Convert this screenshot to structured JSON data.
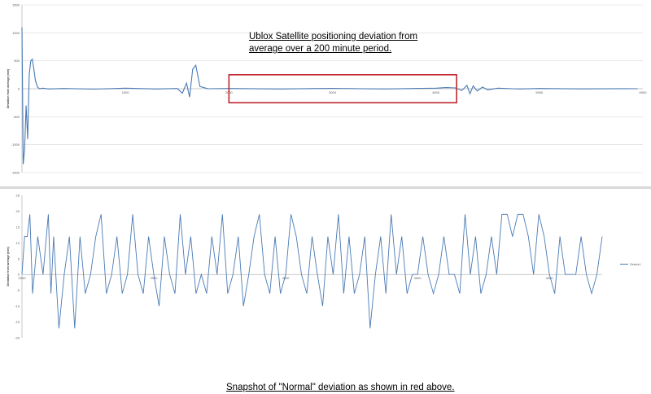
{
  "top_annotation": {
    "line1": "Ublox Satellite positioning deviation from",
    "line2": "average over a 200 minute period."
  },
  "bottom_annotation": "Snapshot of \"Normal\" deviation as shown in red above.",
  "colors": {
    "series": "#4a7ab5",
    "highlight_box": "#c0262d",
    "grid": "#d9d9d9",
    "axis": "#a6a6a6"
  },
  "chart_data": [
    {
      "type": "line",
      "title": "",
      "ylabel": "Deviation from average (mm)",
      "xlim": [
        0,
        6000
      ],
      "ylim": [
        -1500,
        1500
      ],
      "x_ticks": [
        "1000",
        "2000",
        "3000",
        "4000",
        "5000",
        "6000"
      ],
      "y_ticks": [
        "1500",
        "1000",
        "500",
        "0",
        "-500",
        "-1000",
        "-1500"
      ],
      "grid": true,
      "highlight_range": {
        "x": [
          2000,
          4200
        ],
        "y": [
          -250,
          250
        ]
      },
      "series": [
        {
          "x": [
            0,
            12,
            25,
            40,
            55,
            70,
            85,
            100,
            115,
            130,
            150,
            170,
            200,
            260,
            400,
            700,
            1000,
            1300,
            1500,
            1550,
            1590,
            1620,
            1650,
            1680,
            1720,
            1800,
            2000,
            2500,
            3000,
            3500,
            4000,
            4100,
            4190,
            4250,
            4300,
            4330,
            4360,
            4400,
            4450,
            4500,
            4600,
            4800,
            5000,
            5400,
            5800,
            5950
          ],
          "y": [
            1100,
            -1350,
            -1100,
            -300,
            -900,
            250,
            500,
            530,
            350,
            150,
            30,
            0,
            10,
            -5,
            5,
            -8,
            10,
            -5,
            5,
            -80,
            100,
            -150,
            350,
            420,
            40,
            0,
            5,
            -5,
            8,
            -5,
            10,
            20,
            15,
            -30,
            60,
            -90,
            50,
            -40,
            30,
            -20,
            10,
            -5,
            5,
            -3,
            2,
            0
          ]
        }
      ]
    },
    {
      "type": "line",
      "title": "",
      "ylabel": "Deviation from average (mm)",
      "xlim": [
        2000,
        4200
      ],
      "ylim": [
        -20,
        25
      ],
      "x_ticks": [
        "2000",
        "2500",
        "3000",
        "3500",
        "4000"
      ],
      "y_ticks": [
        "25",
        "20",
        "15",
        "10",
        "5",
        "0",
        "-5",
        "-10",
        "-15",
        "-20"
      ],
      "grid": false,
      "legend": "Series1",
      "legend_position": "right",
      "series": [
        {
          "name": "Series1",
          "x": [
            2000,
            2010,
            2020,
            2030,
            2040,
            2060,
            2080,
            2100,
            2110,
            2120,
            2140,
            2160,
            2180,
            2200,
            2220,
            2240,
            2260,
            2280,
            2300,
            2320,
            2340,
            2360,
            2380,
            2400,
            2420,
            2440,
            2460,
            2480,
            2500,
            2520,
            2540,
            2560,
            2580,
            2600,
            2620,
            2640,
            2660,
            2680,
            2700,
            2720,
            2740,
            2760,
            2780,
            2800,
            2820,
            2840,
            2860,
            2880,
            2900,
            2920,
            2940,
            2960,
            2980,
            3000,
            3020,
            3040,
            3060,
            3080,
            3100,
            3120,
            3140,
            3160,
            3180,
            3200,
            3220,
            3240,
            3260,
            3280,
            3300,
            3320,
            3340,
            3360,
            3380,
            3400,
            3420,
            3440,
            3460,
            3480,
            3500,
            3520,
            3540,
            3560,
            3580,
            3600,
            3620,
            3640,
            3660,
            3680,
            3700,
            3720,
            3740,
            3760,
            3780,
            3800,
            3820,
            3840,
            3860,
            3880,
            3900,
            3920,
            3940,
            3960,
            3980,
            4000,
            4020,
            4040,
            4060,
            4080,
            4100,
            4120,
            4140,
            4160,
            4180,
            4200
          ],
          "y": [
            0,
            12,
            12,
            19,
            -6,
            12,
            0,
            19,
            -6,
            12,
            -17,
            0,
            12,
            -17,
            12,
            -6,
            0,
            12,
            19,
            -6,
            0,
            12,
            -6,
            0,
            19,
            0,
            -6,
            12,
            0,
            -10,
            12,
            0,
            -6,
            19,
            0,
            12,
            -6,
            0,
            -6,
            12,
            0,
            19,
            -6,
            0,
            12,
            -10,
            0,
            12,
            19,
            0,
            -6,
            12,
            -6,
            0,
            19,
            12,
            0,
            -6,
            12,
            0,
            -10,
            12,
            0,
            19,
            -6,
            12,
            -6,
            0,
            12,
            -17,
            0,
            12,
            -6,
            19,
            0,
            12,
            -6,
            0,
            0,
            12,
            0,
            -6,
            0,
            12,
            0,
            0,
            -6,
            19,
            0,
            12,
            -6,
            0,
            12,
            0,
            19,
            19,
            12,
            19,
            19,
            12,
            0,
            19,
            12,
            0,
            -6,
            12,
            0,
            0,
            0,
            12,
            0,
            -6,
            0,
            12
          ]
        }
      ]
    }
  ]
}
